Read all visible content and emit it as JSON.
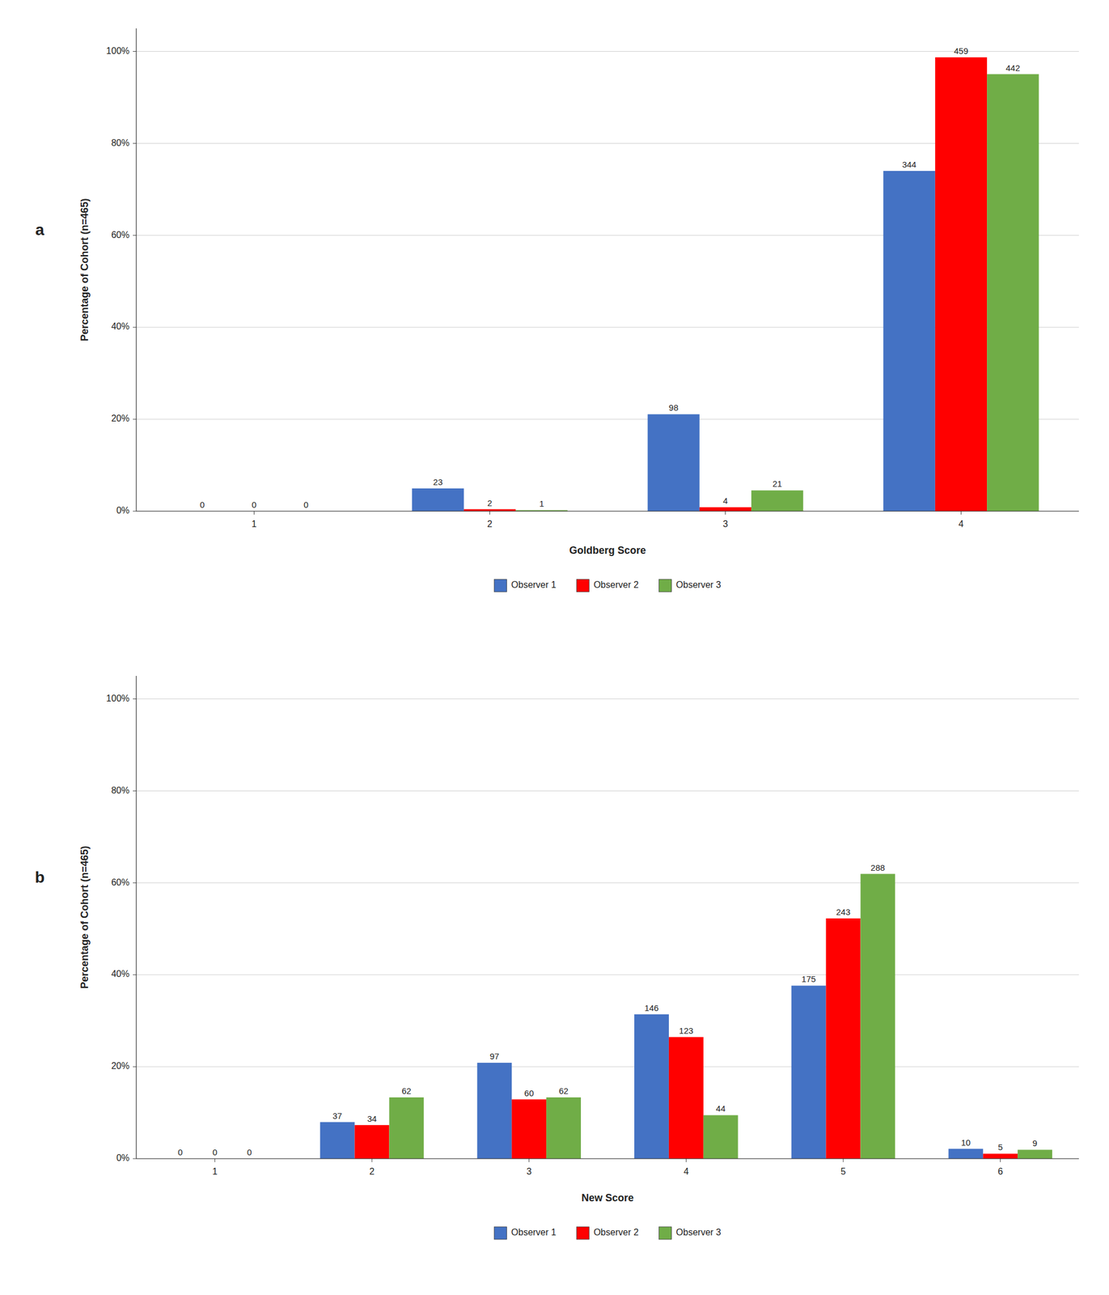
{
  "chart_data": [
    {
      "type": "bar",
      "title": "a",
      "xlabel": "Goldberg Score",
      "ylabel": "Percentage of Cohort (n=465)",
      "categories": [
        "1",
        "2",
        "3",
        "4"
      ],
      "series": [
        {
          "name": "Observer 1",
          "color": "#4472C4",
          "values": [
            0.0,
            4.95,
            21.08,
            74.0
          ],
          "counts": [
            0,
            23,
            98,
            344
          ]
        },
        {
          "name": "Observer 2",
          "color": "#FF0000",
          "values": [
            0.0,
            0.43,
            0.86,
            98.71
          ],
          "counts": [
            0,
            2,
            4,
            459
          ]
        },
        {
          "name": "Observer 3",
          "color": "#70AD47",
          "values": [
            0.0,
            0.215,
            4.52,
            95.05
          ],
          "counts": [
            0,
            1,
            21,
            442
          ]
        }
      ],
      "ylim": [
        0,
        105
      ],
      "yticks": [
        {
          "value": 0,
          "label": "0%"
        },
        {
          "value": 20,
          "label": "20%"
        },
        {
          "value": 40,
          "label": "40%"
        },
        {
          "value": 60,
          "label": "60%"
        },
        {
          "value": 80,
          "label": "80%"
        },
        {
          "value": 100,
          "label": "100%"
        }
      ],
      "grid": true,
      "legend": "bottom"
    },
    {
      "type": "bar",
      "title": "b",
      "xlabel": "New Score",
      "ylabel": "Percentage of Cohort (n=465)",
      "categories": [
        "1",
        "2",
        "3",
        "4",
        "5",
        "6"
      ],
      "series": [
        {
          "name": "Observer 1",
          "color": "#4472C4",
          "values": [
            0.0,
            7.96,
            20.86,
            31.4,
            37.63,
            2.15
          ],
          "counts": [
            0,
            37,
            97,
            146,
            175,
            10
          ]
        },
        {
          "name": "Observer 2",
          "color": "#FF0000",
          "values": [
            0.0,
            7.31,
            12.9,
            26.45,
            52.26,
            1.075
          ],
          "counts": [
            0,
            34,
            60,
            123,
            243,
            5
          ]
        },
        {
          "name": "Observer 3",
          "color": "#70AD47",
          "values": [
            0.0,
            13.33,
            13.33,
            9.46,
            61.94,
            1.935
          ],
          "counts": [
            0,
            62,
            62,
            44,
            288,
            9
          ]
        }
      ],
      "ylim": [
        0,
        105
      ],
      "yticks": [
        {
          "value": 0,
          "label": "0%"
        },
        {
          "value": 20,
          "label": "20%"
        },
        {
          "value": 40,
          "label": "40%"
        },
        {
          "value": 60,
          "label": "60%"
        },
        {
          "value": 80,
          "label": "80%"
        },
        {
          "value": 100,
          "label": "100%"
        }
      ],
      "grid": true,
      "legend": "bottom"
    }
  ]
}
